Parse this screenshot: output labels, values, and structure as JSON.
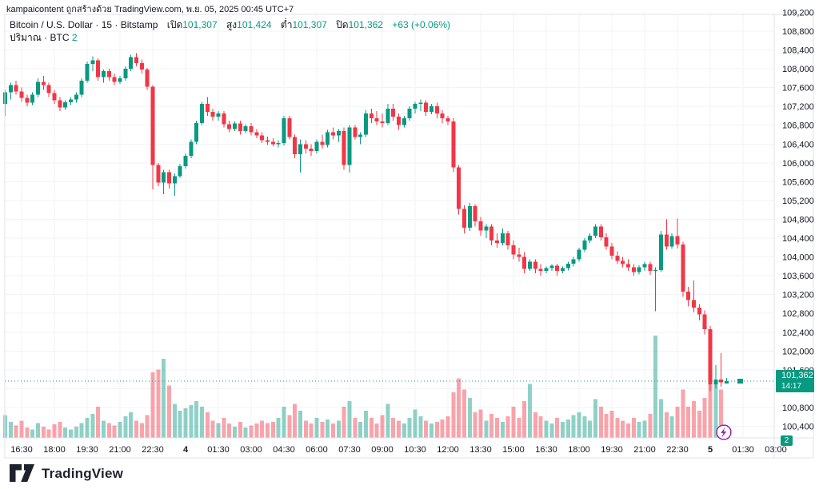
{
  "attribution": "kampaicontent ถูกสร้างด้วย TradingView.com, พ.ย. 05, 2025 00:45 UTC+7",
  "legend": {
    "title": "Bitcoin / U.S. Dollar · 15 · Bitstamp",
    "ohlc": [
      {
        "label": "เปิด",
        "value": "101,307"
      },
      {
        "label": "สูง",
        "value": "101,424"
      },
      {
        "label": "ต่ำ",
        "value": "101,307"
      },
      {
        "label": "ปิด",
        "value": "101,362"
      }
    ],
    "change": "+63 (+0.06%)",
    "volume_label": "ปริมาณ · BTC",
    "volume_value": "2"
  },
  "price_axis": {
    "labels": [
      "109,200",
      "108,800",
      "108,400",
      "108,000",
      "107,600",
      "107,200",
      "106,800",
      "106,400",
      "106,000",
      "105,600",
      "105,200",
      "104,800",
      "104,400",
      "104,000",
      "103,600",
      "103,200",
      "102,800",
      "102,400",
      "102,000",
      "101,600",
      "100,800",
      "100,400"
    ]
  },
  "time_axis": {
    "labels": [
      "16:30",
      "18:00",
      "19:30",
      "21:00",
      "22:30",
      "4",
      "01:30",
      "03:00",
      "04:30",
      "06:00",
      "07:30",
      "09:00",
      "10:30",
      "12:00",
      "13:30",
      "15:00",
      "16:30",
      "18:00",
      "19:30",
      "21:00",
      "22:30",
      "5",
      "01:30",
      "03:00"
    ],
    "date_label_indices": [
      5,
      21
    ]
  },
  "last_price": {
    "value": "101,362",
    "countdown": "14:17"
  },
  "volume_axis_badge": "2",
  "logo_text": "TradingView",
  "colors": {
    "up": "#089981",
    "down": "#f23645",
    "grid": "#f0f3fa",
    "border": "#e0e3eb",
    "text": "#131722",
    "accent": "#089981",
    "flash": "#9c27b0"
  },
  "chart_data": {
    "type": "candlestick",
    "symbol": "Bitcoin / U.S. Dollar",
    "exchange": "Bitstamp",
    "interval": "15",
    "timezone": "UTC+7",
    "start_time": "2025-11-03 15:45",
    "interval_minutes": 15,
    "price_range": [
      100400,
      109200
    ],
    "volume_indicator": "ปริมาณ · BTC",
    "last_close": 101362,
    "candles": [
      [
        107250,
        107550,
        107000,
        107500,
        40
      ],
      [
        107500,
        107700,
        107350,
        107650,
        28
      ],
      [
        107650,
        107750,
        107450,
        107520,
        22
      ],
      [
        107520,
        107600,
        107300,
        107380,
        30
      ],
      [
        107380,
        107450,
        107200,
        107280,
        18
      ],
      [
        107280,
        107500,
        107230,
        107450,
        15
      ],
      [
        107450,
        107800,
        107400,
        107720,
        26
      ],
      [
        107720,
        107850,
        107550,
        107650,
        20
      ],
      [
        107650,
        107700,
        107400,
        107480,
        15
      ],
      [
        107480,
        107550,
        107250,
        107330,
        24
      ],
      [
        107330,
        107400,
        107100,
        107180,
        28
      ],
      [
        107180,
        107330,
        107130,
        107290,
        18
      ],
      [
        107290,
        107400,
        107230,
        107350,
        15
      ],
      [
        107350,
        107500,
        107280,
        107450,
        20
      ],
      [
        107450,
        107800,
        107400,
        107750,
        26
      ],
      [
        107750,
        108150,
        107700,
        108100,
        35
      ],
      [
        108100,
        108260,
        107950,
        108180,
        42
      ],
      [
        108180,
        108220,
        107750,
        107820,
        55
      ],
      [
        107820,
        107980,
        107700,
        107950,
        30
      ],
      [
        107950,
        108000,
        107750,
        107820,
        26
      ],
      [
        107820,
        107900,
        107650,
        107720,
        22
      ],
      [
        107720,
        107850,
        107680,
        107800,
        28
      ],
      [
        107800,
        108050,
        107750,
        108000,
        38
      ],
      [
        108000,
        108300,
        107950,
        108250,
        45
      ],
      [
        108250,
        108330,
        108050,
        108120,
        30
      ],
      [
        108120,
        108200,
        107900,
        107980,
        26
      ],
      [
        107980,
        108020,
        107550,
        107620,
        40
      ],
      [
        107620,
        107650,
        105440,
        105950,
        115
      ],
      [
        105950,
        106000,
        105500,
        105580,
        120
      ],
      [
        105580,
        105850,
        105330,
        105800,
        139
      ],
      [
        105800,
        105850,
        105450,
        105560,
        92
      ],
      [
        105560,
        105780,
        105300,
        105720,
        60
      ],
      [
        105720,
        105980,
        105680,
        105930,
        48
      ],
      [
        105930,
        106200,
        105880,
        106150,
        52
      ],
      [
        106150,
        106500,
        106100,
        106450,
        58
      ],
      [
        106450,
        106900,
        106400,
        106850,
        65
      ],
      [
        106850,
        107300,
        106800,
        107250,
        55
      ],
      [
        107250,
        107400,
        107000,
        107080,
        45
      ],
      [
        107080,
        107150,
        106900,
        106980,
        30
      ],
      [
        106980,
        107100,
        106900,
        107050,
        26
      ],
      [
        107050,
        107100,
        106750,
        106820,
        35
      ],
      [
        106820,
        106900,
        106650,
        106720,
        25
      ],
      [
        106720,
        106880,
        106680,
        106840,
        20
      ],
      [
        106840,
        106900,
        106600,
        106680,
        28
      ],
      [
        106680,
        106820,
        106630,
        106780,
        18
      ],
      [
        106780,
        106850,
        106580,
        106650,
        22
      ],
      [
        106650,
        106720,
        106520,
        106580,
        25
      ],
      [
        106580,
        106650,
        106420,
        106480,
        30
      ],
      [
        106480,
        106560,
        106380,
        106450,
        26
      ],
      [
        106450,
        106520,
        106350,
        106400,
        28
      ],
      [
        106400,
        106480,
        106330,
        106420,
        35
      ],
      [
        106420,
        107000,
        106370,
        106950,
        55
      ],
      [
        106950,
        107000,
        106500,
        106550,
        40
      ],
      [
        106550,
        106600,
        106100,
        106180,
        60
      ],
      [
        106180,
        106500,
        105790,
        106400,
        48
      ],
      [
        106400,
        106480,
        106200,
        106300,
        30
      ],
      [
        106300,
        106400,
        106150,
        106250,
        25
      ],
      [
        106250,
        106500,
        106200,
        106450,
        35
      ],
      [
        106450,
        106600,
        106300,
        106380,
        28
      ],
      [
        106380,
        106700,
        106330,
        106650,
        32
      ],
      [
        106650,
        106750,
        106500,
        106580,
        25
      ],
      [
        106580,
        106720,
        106450,
        106680,
        30
      ],
      [
        106680,
        106750,
        105850,
        105950,
        55
      ],
      [
        105950,
        106800,
        105790,
        106750,
        65
      ],
      [
        106750,
        106800,
        106500,
        106550,
        35
      ],
      [
        106550,
        106650,
        106400,
        106600,
        28
      ],
      [
        106600,
        107120,
        106550,
        107050,
        48
      ],
      [
        107050,
        107150,
        106850,
        106950,
        35
      ],
      [
        106950,
        107100,
        106800,
        106880,
        25
      ],
      [
        106880,
        107050,
        106750,
        106850,
        40
      ],
      [
        106850,
        107250,
        106800,
        107150,
        60
      ],
      [
        107150,
        107250,
        106900,
        106980,
        35
      ],
      [
        106980,
        107050,
        106700,
        106800,
        30
      ],
      [
        106800,
        107000,
        106750,
        106950,
        25
      ],
      [
        106950,
        107200,
        106900,
        107150,
        35
      ],
      [
        107150,
        107300,
        107050,
        107250,
        50
      ],
      [
        107250,
        107350,
        107100,
        107280,
        38
      ],
      [
        107280,
        107330,
        107000,
        107080,
        30
      ],
      [
        107080,
        107250,
        107030,
        107200,
        25
      ],
      [
        107200,
        107280,
        106950,
        107050,
        28
      ],
      [
        107050,
        107120,
        106850,
        106950,
        32
      ],
      [
        106950,
        107000,
        106800,
        106880,
        38
      ],
      [
        106880,
        106950,
        105800,
        105900,
        80
      ],
      [
        105900,
        105950,
        104900,
        105020,
        105
      ],
      [
        105020,
        105100,
        104500,
        104620,
        85
      ],
      [
        104620,
        105150,
        104550,
        105080,
        70
      ],
      [
        105080,
        105120,
        104650,
        104760,
        45
      ],
      [
        104760,
        104850,
        104450,
        104560,
        50
      ],
      [
        104560,
        104700,
        104400,
        104650,
        30
      ],
      [
        104650,
        104700,
        104250,
        104350,
        42
      ],
      [
        104350,
        104500,
        104200,
        104300,
        35
      ],
      [
        104300,
        104600,
        104250,
        104500,
        28
      ],
      [
        104500,
        104550,
        104150,
        104250,
        38
      ],
      [
        104250,
        104350,
        103950,
        104050,
        55
      ],
      [
        104050,
        104200,
        103900,
        104000,
        35
      ],
      [
        104000,
        104100,
        103650,
        103750,
        65
      ],
      [
        103750,
        103950,
        103700,
        103900,
        95
      ],
      [
        103900,
        103950,
        103650,
        103750,
        45
      ],
      [
        103750,
        103850,
        103600,
        103700,
        38
      ],
      [
        103700,
        103800,
        103650,
        103760,
        30
      ],
      [
        103760,
        103850,
        103700,
        103810,
        25
      ],
      [
        103810,
        103860,
        103600,
        103700,
        35
      ],
      [
        103700,
        103800,
        103650,
        103760,
        28
      ],
      [
        103760,
        103900,
        103710,
        103860,
        32
      ],
      [
        103860,
        104000,
        103800,
        103950,
        40
      ],
      [
        103950,
        104200,
        103900,
        104150,
        45
      ],
      [
        104150,
        104400,
        104100,
        104350,
        38
      ],
      [
        104350,
        104500,
        104300,
        104450,
        30
      ],
      [
        104450,
        104700,
        104400,
        104650,
        68
      ],
      [
        104650,
        104700,
        104350,
        104420,
        55
      ],
      [
        104420,
        104500,
        104150,
        104220,
        42
      ],
      [
        104220,
        104300,
        103950,
        104030,
        48
      ],
      [
        104030,
        104120,
        103850,
        103920,
        35
      ],
      [
        103920,
        104000,
        103780,
        103850,
        30
      ],
      [
        103850,
        103950,
        103700,
        103780,
        25
      ],
      [
        103780,
        103850,
        103600,
        103680,
        35
      ],
      [
        103680,
        103820,
        103630,
        103780,
        28
      ],
      [
        103780,
        103900,
        103700,
        103850,
        30
      ],
      [
        103850,
        103900,
        103620,
        103700,
        42
      ],
      [
        103700,
        103780,
        102850,
        103720,
        180
      ],
      [
        103720,
        104550,
        103680,
        104480,
        68
      ],
      [
        104480,
        104800,
        104150,
        104220,
        45
      ],
      [
        104220,
        104500,
        104170,
        104440,
        38
      ],
      [
        104440,
        104820,
        104180,
        104260,
        55
      ],
      [
        104260,
        104320,
        103150,
        103260,
        85
      ],
      [
        103260,
        103360,
        102950,
        103080,
        55
      ],
      [
        103080,
        103500,
        102820,
        102920,
        65
      ],
      [
        102920,
        103000,
        102650,
        102780,
        48
      ],
      [
        102780,
        102860,
        102350,
        102460,
        70
      ],
      [
        102460,
        102530,
        101150,
        101290,
        110
      ],
      [
        101290,
        101700,
        101210,
        101390,
        95
      ],
      [
        101390,
        101950,
        101240,
        101330,
        85
      ],
      [
        101307,
        101424,
        101307,
        101362,
        2
      ]
    ]
  }
}
